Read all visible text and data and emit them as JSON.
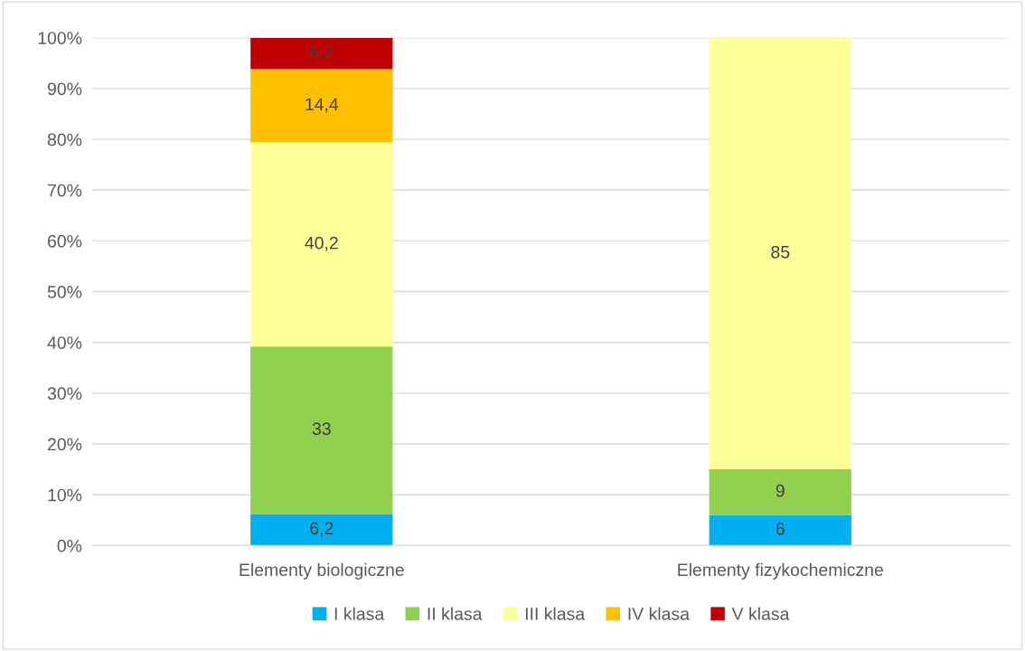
{
  "chart_data": {
    "type": "bar",
    "stacked": true,
    "categories": [
      "Elementy biologiczne",
      "Elementy fizykochemiczne"
    ],
    "series": [
      {
        "name": "I klasa",
        "color": "#00b0f0",
        "values": [
          6.2,
          6
        ],
        "value_labels": [
          "6,2",
          "6"
        ]
      },
      {
        "name": "II klasa",
        "color": "#92d050",
        "values": [
          33,
          9
        ],
        "value_labels": [
          "33",
          "9"
        ]
      },
      {
        "name": "III klasa",
        "color": "#ffff99",
        "values": [
          40.2,
          85
        ],
        "value_labels": [
          "40,2",
          "85"
        ]
      },
      {
        "name": "IV klasa",
        "color": "#ffc000",
        "values": [
          14.4,
          null
        ],
        "value_labels": [
          "14,4",
          null
        ]
      },
      {
        "name": "V klasa",
        "color": "#c00000",
        "values": [
          6.2,
          null
        ],
        "value_labels": [
          "6,2",
          null
        ]
      }
    ],
    "ylim": [
      0,
      100
    ],
    "yticks": [
      {
        "value": 0,
        "label": "0%"
      },
      {
        "value": 10,
        "label": "10%"
      },
      {
        "value": 20,
        "label": "20%"
      },
      {
        "value": 30,
        "label": "30%"
      },
      {
        "value": 40,
        "label": "40%"
      },
      {
        "value": 50,
        "label": "50%"
      },
      {
        "value": 60,
        "label": "60%"
      },
      {
        "value": 70,
        "label": "70%"
      },
      {
        "value": 80,
        "label": "80%"
      },
      {
        "value": 90,
        "label": "90%"
      },
      {
        "value": 100,
        "label": "100%"
      }
    ],
    "grid": "y",
    "legend": "bottom"
  }
}
